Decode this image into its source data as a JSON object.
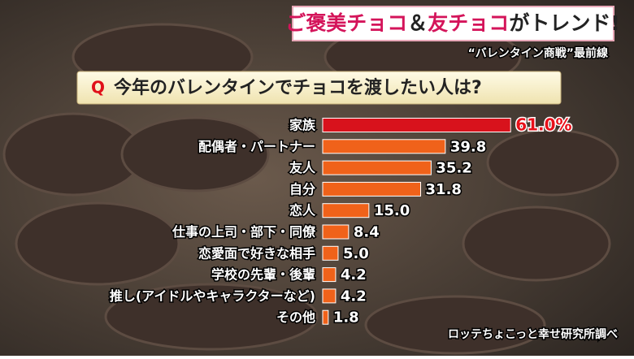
{
  "header": {
    "title_parts": [
      "ご褒美チョコ",
      "＆",
      "友チョコ",
      "がトレンド!"
    ],
    "subtitle": "“バレンタイン商戦”最前線"
  },
  "chart_data": {
    "type": "bar",
    "orientation": "horizontal",
    "title": "今年のバレンタインでチョコを渡したい人は?",
    "title_marker": "Q",
    "categories": [
      "家族",
      "配偶者・パートナー",
      "友人",
      "自分",
      "恋人",
      "仕事の上司・部下・同僚",
      "恋愛面で好きな相手",
      "学校の先輩・後輩",
      "推し(アイドルやキャラクターなど)",
      "その他"
    ],
    "values": [
      61.0,
      39.8,
      35.2,
      31.8,
      15.0,
      8.4,
      5.0,
      4.2,
      4.2,
      1.8
    ],
    "value_labels": [
      "61.0%",
      "39.8",
      "35.2",
      "31.8",
      "15.0",
      "8.4",
      "5.0",
      "4.2",
      "4.2",
      "1.8"
    ],
    "colors": [
      "#d8121c",
      "#f0621a",
      "#f0621a",
      "#f0621a",
      "#f0621a",
      "#f0621a",
      "#f0621a",
      "#f0621a",
      "#f0621a",
      "#f0621a"
    ],
    "source": "ロッテちょこっと幸せ研究所調べ"
  }
}
